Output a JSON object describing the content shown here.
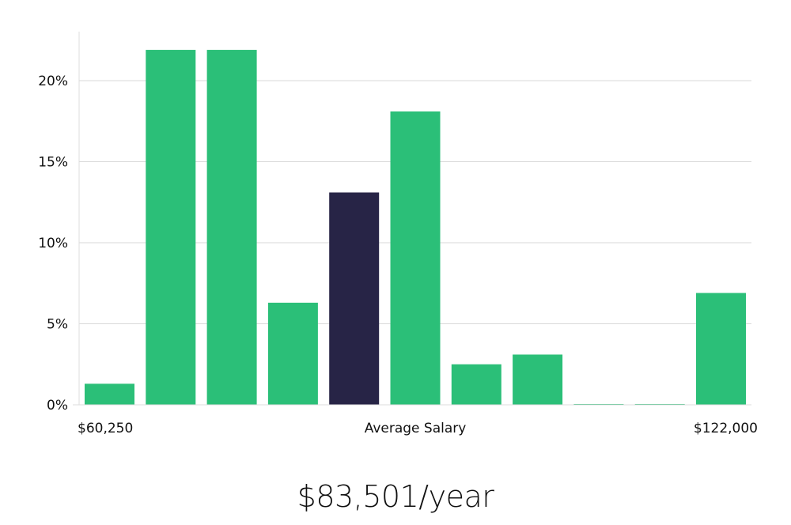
{
  "chart_data": {
    "type": "bar",
    "title": "",
    "xlabel": "Average Salary",
    "ylabel": "",
    "x_range_labels": {
      "min": "$60,250",
      "max": "$122,000"
    },
    "ylim": [
      0,
      22.5
    ],
    "y_ticks": [
      0,
      5,
      10,
      15,
      20
    ],
    "y_tick_labels": [
      "0%",
      "5%",
      "10%",
      "15%",
      "20%"
    ],
    "grid": true,
    "legend": "none",
    "values": [
      1.3,
      21.9,
      21.9,
      6.3,
      13.1,
      18.1,
      2.5,
      3.1,
      0.05,
      0.05,
      6.9
    ],
    "highlight_index": 4,
    "colors": {
      "bar": "#2bbf78",
      "highlight": "#272446",
      "grid": "#d9d9d9",
      "axis": "#dddddd"
    }
  },
  "footer": {
    "salary": "$83,501/year"
  }
}
